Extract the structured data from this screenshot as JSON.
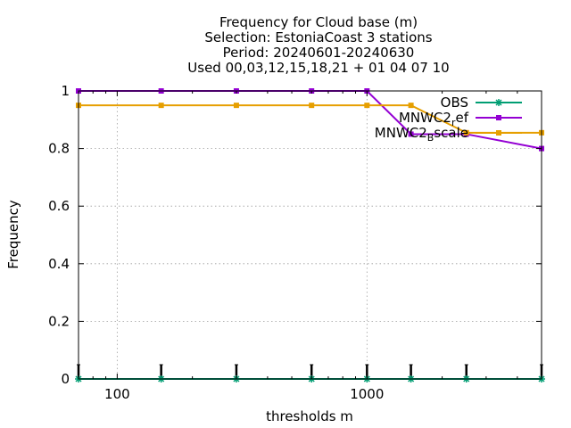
{
  "chart_data": {
    "type": "line",
    "title_lines": [
      "Frequency  for Cloud base (m)",
      "Selection: EstoniaCoast      3 stations",
      "Period: 20240601-20240630",
      "Used 00,03,12,15,18,21 + 01 04 07 10"
    ],
    "xlabel": "thresholds m",
    "ylabel": "Frequency",
    "x_scale": "log",
    "xlim": [
      70,
      5000
    ],
    "ylim": [
      0,
      1
    ],
    "x_ticks": [
      100,
      1000
    ],
    "x_tick_labels": [
      "100",
      "1000"
    ],
    "y_ticks": [
      0,
      0.2,
      0.4,
      0.6,
      0.8,
      1
    ],
    "y_tick_labels": [
      "0",
      "0.2",
      "0.4",
      "0.6",
      "0.8",
      "1"
    ],
    "grid": true,
    "legend_position": "top-right",
    "x": [
      70,
      150,
      300,
      600,
      1000,
      1500,
      2500,
      5000
    ],
    "series": [
      {
        "name": "OBS",
        "color": "#009e73",
        "marker": "star",
        "values": [
          0,
          0,
          0,
          0,
          0,
          0,
          0,
          0
        ]
      },
      {
        "name": "MNWC2_ref",
        "legend_text": "MNWC2",
        "legend_sub": "r",
        "legend_after": "ef",
        "color": "#9400d3",
        "marker": "square",
        "values": [
          1,
          1,
          1,
          1,
          1,
          0.85,
          0.85,
          0.8
        ]
      },
      {
        "name": "MNWC2_bscale",
        "legend_text": "MNWC2",
        "legend_sub": "B",
        "legend_after": "scale",
        "color": "#e69f00",
        "marker": "square",
        "values": [
          0.95,
          0.95,
          0.95,
          0.95,
          0.95,
          0.95,
          0.855,
          0.855
        ]
      }
    ],
    "obs_count_bars_at": [
      70,
      150,
      300,
      600,
      1000,
      1500,
      2500,
      5000
    ]
  }
}
